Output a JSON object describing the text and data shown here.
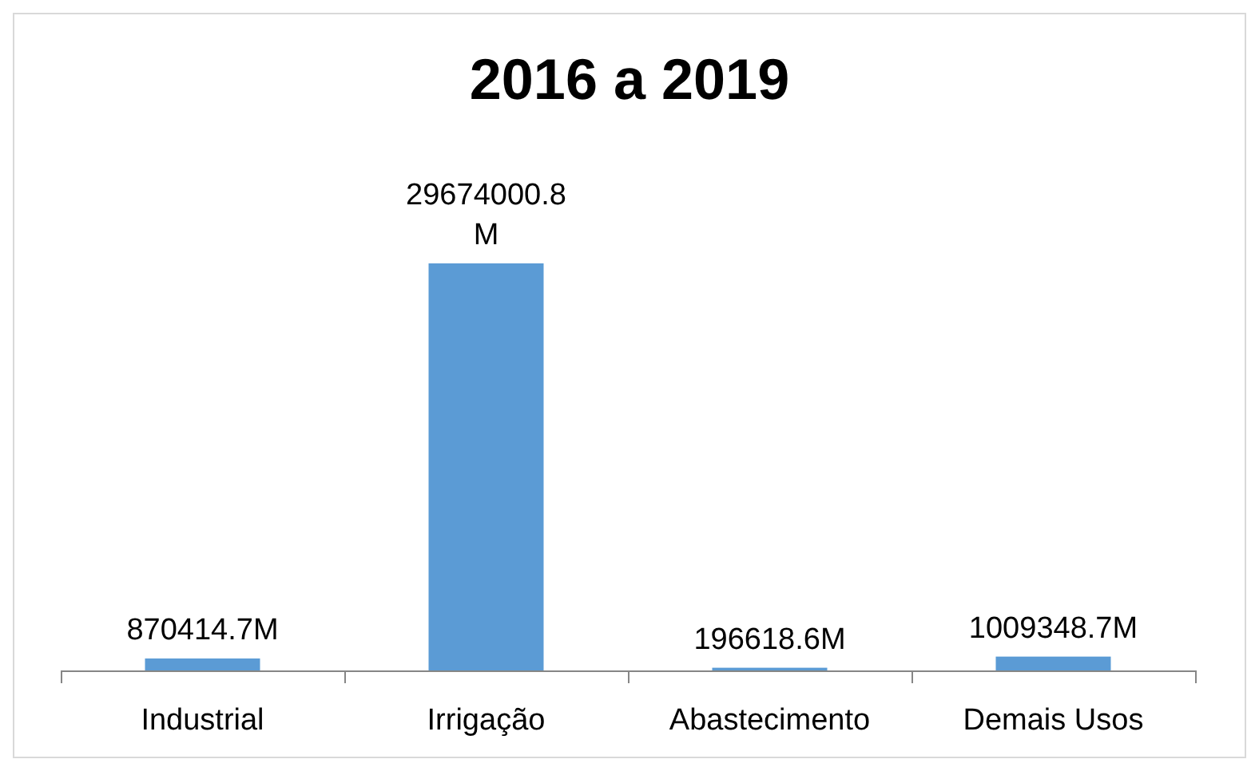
{
  "chart_data": {
    "type": "bar",
    "title": "2016 a 2019",
    "categories": [
      "Industrial",
      "Irrigação",
      "Abastecimento",
      "Demais Usos"
    ],
    "color": "#5b9bd5",
    "values": [
      870414.7,
      29674000.8,
      196618.6,
      1009348.7
    ],
    "value_labels": [
      "870414.7M",
      "29674000.8M",
      "196618.6M",
      "1009348.7M"
    ]
  }
}
